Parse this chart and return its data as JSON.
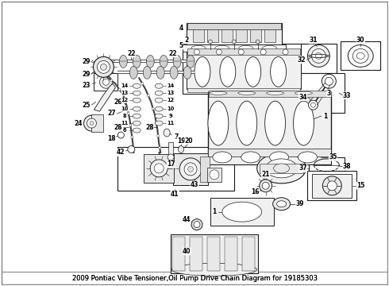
{
  "title": "2009 Pontiac Vibe Tensioner,Oil Pump Drive Chain Diagram for 19185303",
  "bg_color": "#ffffff",
  "fig_width": 4.9,
  "fig_height": 3.6,
  "dpi": 100,
  "lc": "#1a1a1a",
  "title_fontsize": 6.0,
  "label_fontsize": 5.5
}
